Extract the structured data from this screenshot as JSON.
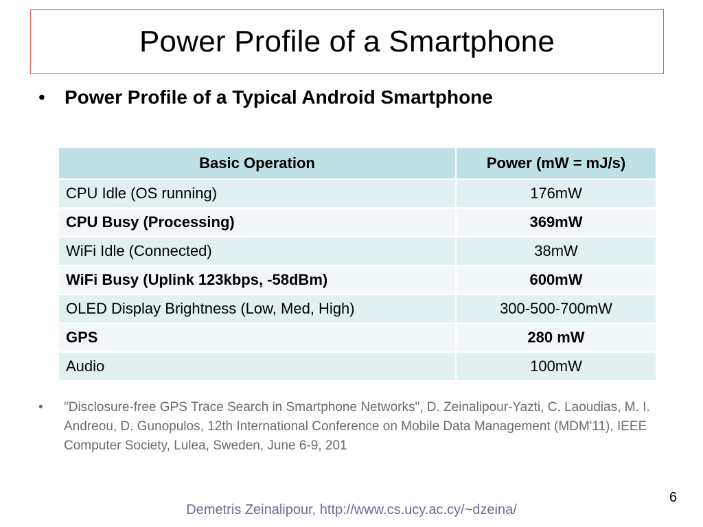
{
  "slide": {
    "title": "Power Profile of a Smartphone",
    "bullet": "Power Profile of a Typical Android Smartphone",
    "bullet_marker": "•",
    "table": {
      "headers": [
        "Basic Operation",
        "Power (mW = mJ/s)"
      ],
      "rows": [
        {
          "operation": "CPU Idle (OS running)",
          "power": "176mW",
          "bold": false
        },
        {
          "operation": "CPU Busy (Processing)",
          "power": "369mW",
          "bold": true
        },
        {
          "operation": "WiFi Idle (Connected)",
          "power": "38mW",
          "bold": false
        },
        {
          "operation": "WiFi Busy (Uplink 123kbps, -58dBm)",
          "power": "600mW",
          "bold": true
        },
        {
          "operation": "OLED Display Brightness (Low, Med, High)",
          "power": "300-500-700mW",
          "bold": false
        },
        {
          "operation": "GPS",
          "power": "280 mW",
          "bold": true
        },
        {
          "operation": "Audio",
          "power": "100mW",
          "bold": false
        }
      ]
    },
    "reference": "\"Disclosure-free GPS Trace Search in Smartphone Networks\",  D. Zeinalipour-Yazti, C. Laoudias, M. I. Andreou, D. Gunopulos, 12th International Conference on Mobile Data Management (MDM'11), IEEE Computer Society, Lulea, Sweden, June 6-9, 201",
    "page_number": "6",
    "footer": "Demetris Zeinalipour, http://www.cs.ucy.ac.cy/~dzeina/"
  },
  "colors": {
    "title_border": "#e06060",
    "table_header_bg": "#bfe1e3",
    "row_odd_bg": "#e3f0f1",
    "row_even_bg": "#f1f7f8",
    "footer_text": "#6a6a9a"
  }
}
